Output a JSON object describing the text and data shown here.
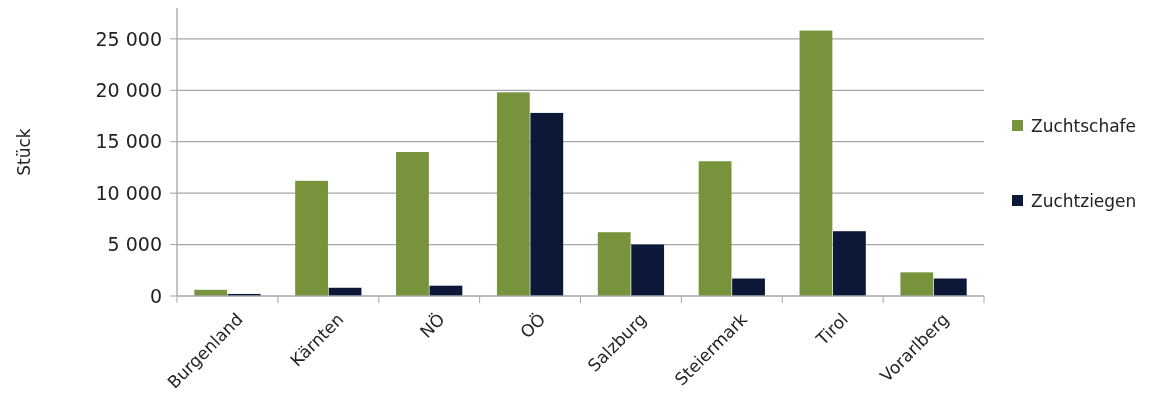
{
  "chart_data": {
    "type": "bar",
    "ylabel": "Stück",
    "categories": [
      "Burgenland",
      "Kärnten",
      "NÖ",
      "OÖ",
      "Salzburg",
      "Steiermark",
      "Tirol",
      "Vorarlberg"
    ],
    "series": [
      {
        "name": "Zuchtschafe",
        "color": "#77933c",
        "values": [
          600,
          11200,
          14000,
          19800,
          6200,
          13100,
          25800,
          2300
        ]
      },
      {
        "name": "Zuchtziegen",
        "color": "#0c1838",
        "values": [
          200,
          800,
          1000,
          17800,
          5000,
          1700,
          6300,
          1700
        ]
      }
    ],
    "ylim": [
      0,
      28000
    ],
    "yticks": [
      {
        "value": 0,
        "label": "0"
      },
      {
        "value": 5000,
        "label": "5 000"
      },
      {
        "value": 10000,
        "label": "10 000"
      },
      {
        "value": 15000,
        "label": "15 000"
      },
      {
        "value": 20000,
        "label": "20 000"
      },
      {
        "value": 25000,
        "label": "25 000"
      }
    ],
    "grid": "y",
    "legend": "right"
  }
}
